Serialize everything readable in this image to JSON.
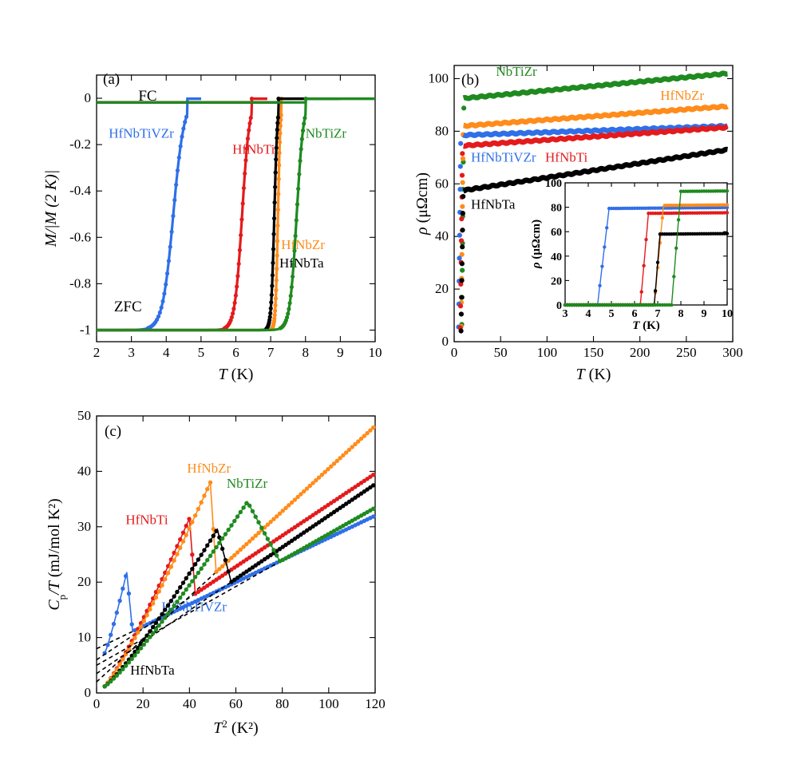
{
  "colors": {
    "HfNbTiVZr": "#2f6fe8",
    "HfNbTi": "#e41a1c",
    "HfNbZr": "#ff8c1a",
    "HfNbTa": "#000000",
    "NbTiZr": "#1f8a1f"
  },
  "chart_data": [
    {
      "id": "a",
      "type": "line",
      "panel_label": "(a)",
      "xlabel": "T",
      "xlabel_unit": "(K)",
      "ylabel": "M/|M (2 K)|",
      "xlim": [
        2,
        10
      ],
      "ylim": [
        -1.05,
        0.1
      ],
      "xticks": [
        2,
        3,
        4,
        5,
        6,
        7,
        8,
        9,
        10
      ],
      "yticks": [
        0,
        -0.2,
        -0.4,
        -0.6,
        -0.8,
        -1
      ],
      "ytick_labels": [
        "0",
        "-0.2",
        "-0.4",
        "-0.6",
        "-0.8",
        "-1"
      ],
      "annotations": [
        {
          "text": "FC",
          "x": 3.2,
          "y": -0.01
        },
        {
          "text": "ZFC",
          "x": 2.5,
          "y": -0.92
        }
      ],
      "series": [
        {
          "name": "HfNbTiVZr",
          "label_x": 2.35,
          "label_y": -0.17,
          "Tc": 4.6,
          "onset": 3.5,
          "x_max": 5.0
        },
        {
          "name": "HfNbTi",
          "label_x": 5.9,
          "label_y": -0.24,
          "Tc": 6.45,
          "onset": 5.7,
          "x_max": 6.9
        },
        {
          "name": "HfNbZr",
          "label_x": 7.3,
          "label_y": -0.65,
          "Tc": 7.3,
          "onset": 7.05,
          "x_max": 7.6
        },
        {
          "name": "HfNbTa",
          "label_x": 7.25,
          "label_y": -0.73,
          "Tc": 7.22,
          "onset": 6.9,
          "x_max": 9.0
        },
        {
          "name": "NbTiZr",
          "label_x": 8.0,
          "label_y": -0.17,
          "Tc": 8.0,
          "onset": 7.3,
          "x_max": 10.0
        }
      ]
    },
    {
      "id": "b",
      "type": "scatter",
      "panel_label": "(b)",
      "xlabel": "T",
      "xlabel_unit": "(K)",
      "ylabel": "ρ",
      "ylabel_unit": "(μΩcm)",
      "xlim": [
        0,
        300
      ],
      "ylim": [
        0,
        105
      ],
      "xticks": [
        0,
        50,
        100,
        150,
        200,
        250,
        300
      ],
      "yticks": [
        0,
        20,
        40,
        60,
        80,
        100
      ],
      "series": [
        {
          "name": "NbTiZr",
          "label_x": 45,
          "label_y": 101,
          "rho_start": 92.5,
          "rho_end": 102,
          "Tc": 8.0
        },
        {
          "name": "HfNbZr",
          "label_x": 222,
          "label_y": 92,
          "rho_start": 82,
          "rho_end": 89.5,
          "Tc": 7.3
        },
        {
          "name": "HfNbTiVZr",
          "label_x": 18,
          "label_y": 68.5,
          "rho_start": 78.5,
          "rho_end": 82,
          "Tc": 4.6
        },
        {
          "name": "HfNbTi",
          "label_x": 98,
          "label_y": 68.5,
          "rho_start": 74.5,
          "rho_end": 81.5,
          "Tc": 6.45
        },
        {
          "name": "HfNbTa",
          "label_x": 18,
          "label_y": 50.5,
          "rho_start": 57.5,
          "rho_end": 73,
          "Tc": 7.2
        }
      ],
      "inset": {
        "xlabel": "T",
        "xlabel_unit": "(K)",
        "ylabel": "ρ",
        "ylabel_unit": "(μΩcm)",
        "xlim": [
          3,
          10
        ],
        "ylim": [
          0,
          100
        ],
        "xticks": [
          3,
          4,
          5,
          6,
          7,
          8,
          9,
          10
        ],
        "yticks": [
          0,
          20,
          40,
          60,
          80,
          100
        ],
        "series": [
          {
            "name": "HfNbTiVZr",
            "rho_normal": 79,
            "Tc_low": 4.4,
            "Tc_high": 4.9
          },
          {
            "name": "HfNbTi",
            "rho_normal": 75,
            "Tc_low": 6.25,
            "Tc_high": 6.6
          },
          {
            "name": "HfNbZr",
            "rho_normal": 81.5,
            "Tc_low": 6.85,
            "Tc_high": 7.25
          },
          {
            "name": "HfNbTa",
            "rho_normal": 58,
            "Tc_low": 6.85,
            "Tc_high": 7.1
          },
          {
            "name": "NbTiZr",
            "rho_normal": 93,
            "Tc_low": 7.6,
            "Tc_high": 8.0
          }
        ]
      }
    },
    {
      "id": "c",
      "type": "line",
      "panel_label": "(c)",
      "xlabel": "T",
      "xlabel_sup": "2",
      "xlabel_unit": "(K²)",
      "ylabel": "C",
      "ylabel_sub": "p",
      "ylabel_rest": "/T",
      "ylabel_unit": "(mJ/mol K²)",
      "xlim": [
        0,
        120
      ],
      "ylim": [
        0,
        50
      ],
      "xticks": [
        0,
        20,
        40,
        60,
        80,
        100,
        120
      ],
      "yticks": [
        0,
        10,
        20,
        30,
        40,
        50
      ],
      "series": [
        {
          "name": "HfNbTiVZr",
          "label_x": 28,
          "label_y": 14.8,
          "gamma": 8.0,
          "beta": 0.2,
          "T2c": 13,
          "peak": 21.8
        },
        {
          "name": "HfNbTi",
          "label_x": 12.5,
          "label_y": 30.5,
          "gamma": 6.0,
          "beta": 0.28,
          "T2c": 40,
          "peak": 31.5
        },
        {
          "name": "HfNbZr",
          "label_x": 39,
          "label_y": 39.8,
          "gamma": 2.0,
          "beta": 0.385,
          "T2c": 49,
          "peak": 38
        },
        {
          "name": "HfNbTa",
          "label_x": 14.5,
          "label_y": 3.3,
          "gamma": 3.5,
          "beta": 0.285,
          "T2c": 52,
          "peak": 29.5
        },
        {
          "name": "NbTiZr",
          "label_x": 56,
          "label_y": 37,
          "gamma": 5.0,
          "beta": 0.237,
          "T2c": 65,
          "peak": 34.5
        }
      ]
    }
  ]
}
